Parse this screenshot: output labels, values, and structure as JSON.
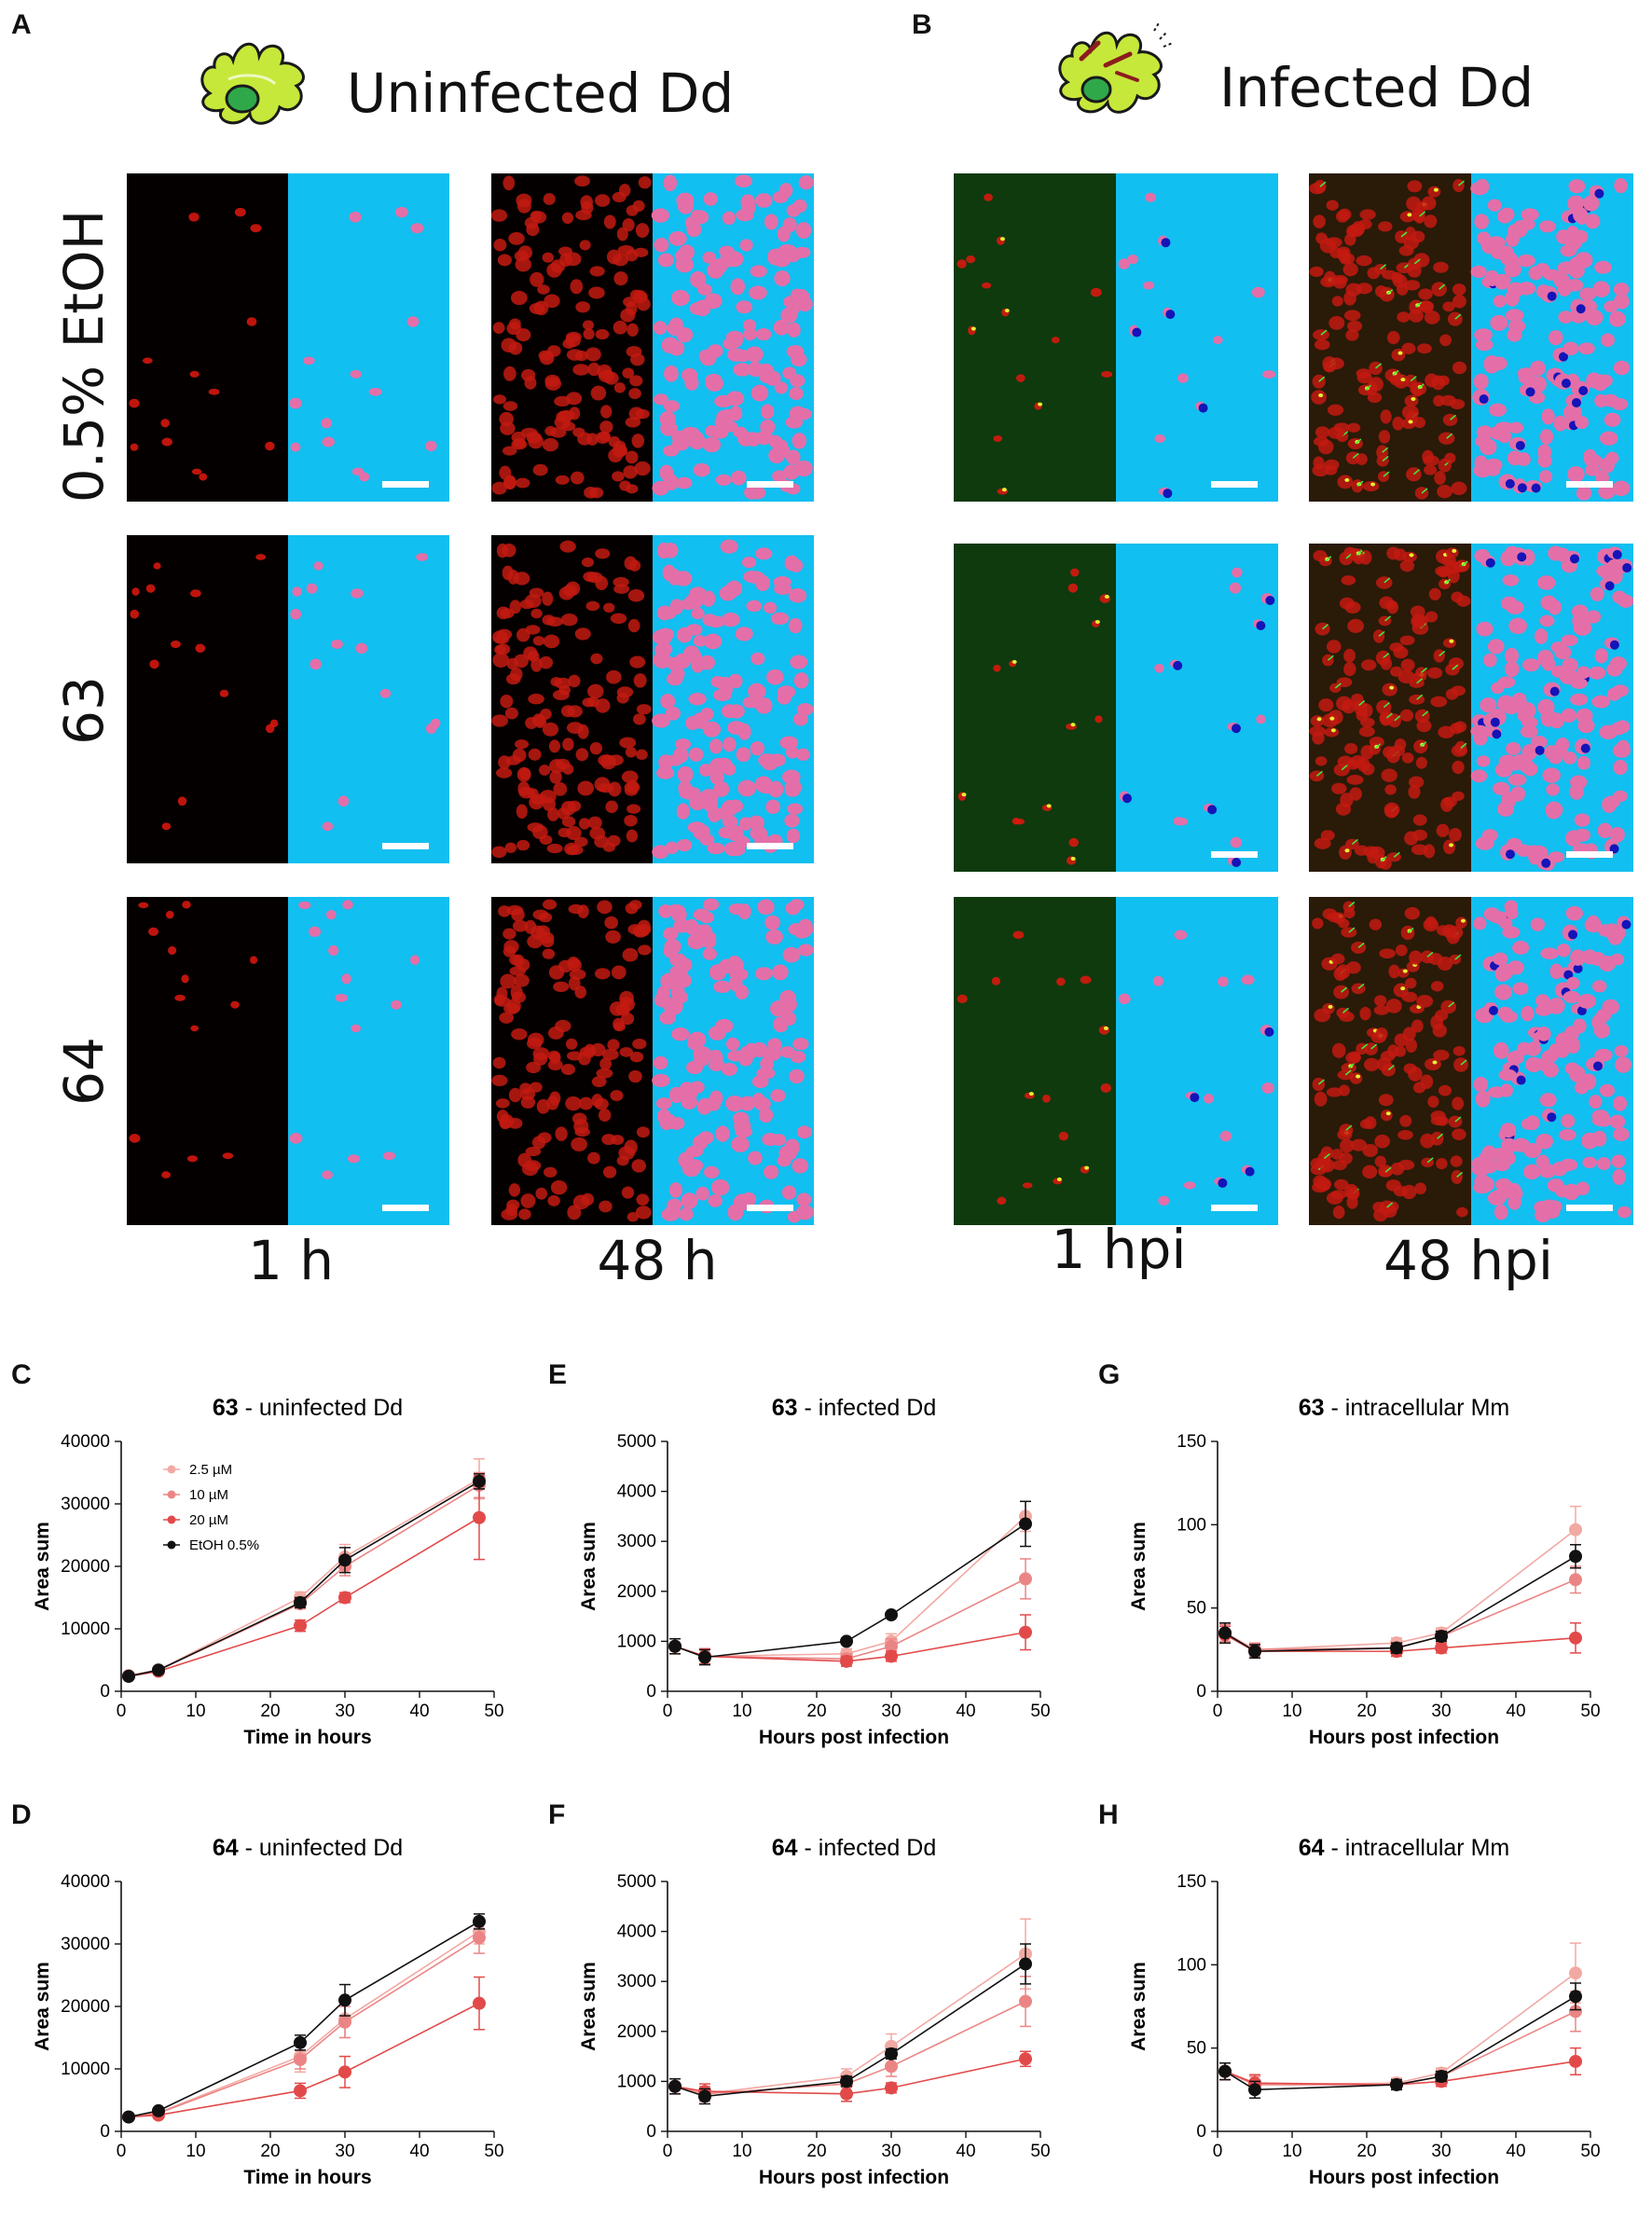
{
  "panels": {
    "A": "A",
    "B": "B",
    "C": "C",
    "D": "D",
    "E": "E",
    "F": "F",
    "G": "G",
    "H": "H"
  },
  "microscopy": {
    "uninfected_title": "Uninfected Dd",
    "infected_title": "Infected Dd",
    "rows": [
      "0.5% EtOH",
      "63",
      "64"
    ],
    "time_uninfected": [
      "1 h",
      "48 h"
    ],
    "time_infected": [
      "1 hpi",
      "48 hpi"
    ]
  },
  "colors": {
    "c25": "#f2a9a3",
    "c10": "#eb8585",
    "c20": "#e24a4a",
    "etoh": "#111111",
    "segmentation_bg": "#11bff0",
    "nuclei": "#e46fa8",
    "bacteria_mask": "#1414b8"
  },
  "chart_data": [
    {
      "id": "C",
      "type": "line",
      "title_bold": "63",
      "title_rest": " - uninfected Dd",
      "xlabel": "Time in hours",
      "ylabel": "Area sum",
      "xlim": [
        0,
        50
      ],
      "ylim": [
        0,
        40000
      ],
      "xticks": [
        0,
        10,
        20,
        30,
        40,
        50
      ],
      "yticks": [
        0,
        10000,
        20000,
        30000,
        40000
      ],
      "x": [
        1,
        5,
        24,
        30,
        48
      ],
      "legend": [
        "2.5 µM",
        "10 µM",
        "20 µM",
        "EtOH 0.5%"
      ],
      "series": [
        {
          "name": "2.5 µM",
          "color": "#f2a9a3",
          "values": [
            2500,
            3400,
            15000,
            21500,
            34000
          ],
          "err": [
            200,
            300,
            900,
            2000,
            3200
          ]
        },
        {
          "name": "10 µM",
          "color": "#eb8585",
          "values": [
            2500,
            3400,
            14000,
            20000,
            33000
          ],
          "err": [
            200,
            300,
            800,
            1500,
            2000
          ]
        },
        {
          "name": "20 µM",
          "color": "#e24a4a",
          "values": [
            2400,
            3200,
            10500,
            15000,
            27800
          ],
          "err": [
            200,
            300,
            900,
            800,
            6700
          ]
        },
        {
          "name": "EtOH 0.5%",
          "color": "#111111",
          "values": [
            2400,
            3400,
            14200,
            21000,
            33600
          ],
          "err": [
            200,
            300,
            800,
            2000,
            1200
          ]
        }
      ]
    },
    {
      "id": "D",
      "type": "line",
      "title_bold": "64",
      "title_rest": " - uninfected Dd",
      "xlabel": "Time in hours",
      "ylabel": "Area sum",
      "xlim": [
        0,
        50
      ],
      "ylim": [
        0,
        40000
      ],
      "xticks": [
        0,
        10,
        20,
        30,
        40,
        50
      ],
      "yticks": [
        0,
        10000,
        20000,
        30000,
        40000
      ],
      "x": [
        1,
        5,
        24,
        30,
        48
      ],
      "series": [
        {
          "name": "2.5 µM",
          "color": "#f2a9a3",
          "values": [
            2300,
            3000,
            12000,
            18000,
            32000
          ],
          "err": [
            200,
            300,
            2500,
            3000,
            2000
          ]
        },
        {
          "name": "10 µM",
          "color": "#eb8585",
          "values": [
            2300,
            2900,
            11500,
            17500,
            31000
          ],
          "err": [
            200,
            300,
            1500,
            2500,
            2500
          ]
        },
        {
          "name": "20 µM",
          "color": "#e24a4a",
          "values": [
            2300,
            2600,
            6500,
            9500,
            20500
          ],
          "err": [
            200,
            300,
            1200,
            2500,
            4200
          ]
        },
        {
          "name": "EtOH 0.5%",
          "color": "#111111",
          "values": [
            2300,
            3300,
            14200,
            21000,
            33600
          ],
          "err": [
            200,
            300,
            1200,
            2500,
            1200
          ]
        }
      ]
    },
    {
      "id": "E",
      "type": "line",
      "title_bold": "63",
      "title_rest": " - infected Dd",
      "xlabel": "Hours post infection",
      "ylabel": "Area sum",
      "xlim": [
        0,
        50
      ],
      "ylim": [
        0,
        5000
      ],
      "xticks": [
        0,
        10,
        20,
        30,
        40,
        50
      ],
      "yticks": [
        0,
        1000,
        2000,
        3000,
        4000,
        5000
      ],
      "x": [
        1,
        5,
        24,
        30,
        48
      ],
      "series": [
        {
          "name": "2.5 µM",
          "color": "#f2a9a3",
          "values": [
            900,
            700,
            750,
            1000,
            3500
          ],
          "err": [
            150,
            150,
            100,
            150,
            300
          ]
        },
        {
          "name": "10 µM",
          "color": "#eb8585",
          "values": [
            900,
            700,
            650,
            900,
            2250
          ],
          "err": [
            150,
            150,
            100,
            150,
            400
          ]
        },
        {
          "name": "20 µM",
          "color": "#e24a4a",
          "values": [
            900,
            700,
            600,
            700,
            1180
          ],
          "err": [
            150,
            150,
            100,
            100,
            350
          ]
        },
        {
          "name": "EtOH 0.5%",
          "color": "#111111",
          "values": [
            900,
            680,
            1000,
            1530,
            3350
          ],
          "err": [
            150,
            150,
            50,
            50,
            450
          ]
        }
      ]
    },
    {
      "id": "F",
      "type": "line",
      "title_bold": "64",
      "title_rest": " - infected Dd",
      "xlabel": "Hours post infection",
      "ylabel": "Area sum",
      "xlim": [
        0,
        50
      ],
      "ylim": [
        0,
        5000
      ],
      "xticks": [
        0,
        10,
        20,
        30,
        40,
        50
      ],
      "yticks": [
        0,
        1000,
        2000,
        3000,
        4000,
        5000
      ],
      "x": [
        1,
        5,
        24,
        30,
        48
      ],
      "series": [
        {
          "name": "2.5 µM",
          "color": "#f2a9a3",
          "values": [
            900,
            750,
            1100,
            1700,
            3550
          ],
          "err": [
            150,
            150,
            150,
            250,
            700
          ]
        },
        {
          "name": "10 µM",
          "color": "#eb8585",
          "values": [
            900,
            750,
            950,
            1300,
            2600
          ],
          "err": [
            150,
            150,
            150,
            200,
            500
          ]
        },
        {
          "name": "20 µM",
          "color": "#e24a4a",
          "values": [
            900,
            800,
            750,
            870,
            1450
          ],
          "err": [
            150,
            150,
            150,
            100,
            150
          ]
        },
        {
          "name": "EtOH 0.5%",
          "color": "#111111",
          "values": [
            900,
            700,
            1000,
            1550,
            3350
          ],
          "err": [
            150,
            150,
            100,
            100,
            400
          ]
        }
      ]
    },
    {
      "id": "G",
      "type": "line",
      "title_bold": "63",
      "title_rest": " - intracellular Mm",
      "xlabel": "Hours post infection",
      "ylabel": "Area sum",
      "xlim": [
        0,
        50
      ],
      "ylim": [
        0,
        150
      ],
      "xticks": [
        0,
        10,
        20,
        30,
        40,
        50
      ],
      "yticks": [
        0,
        50,
        100,
        150
      ],
      "x": [
        1,
        5,
        24,
        30,
        48
      ],
      "series": [
        {
          "name": "2.5 µM",
          "color": "#f2a9a3",
          "values": [
            35,
            25,
            29,
            35,
            97
          ],
          "err": [
            5,
            4,
            3,
            3,
            14
          ]
        },
        {
          "name": "10 µM",
          "color": "#eb8585",
          "values": [
            35,
            25,
            26,
            33,
            67
          ],
          "err": [
            5,
            4,
            3,
            3,
            8
          ]
        },
        {
          "name": "20 µM",
          "color": "#e24a4a",
          "values": [
            34,
            24,
            24,
            26,
            32
          ],
          "err": [
            5,
            4,
            3,
            3,
            9
          ]
        },
        {
          "name": "EtOH 0.5%",
          "color": "#111111",
          "values": [
            35,
            24,
            26,
            33,
            81
          ],
          "err": [
            6,
            4,
            3,
            3,
            7
          ]
        }
      ]
    },
    {
      "id": "H",
      "type": "line",
      "title_bold": "64",
      "title_rest": " - intracellular Mm",
      "xlabel": "Hours post infection",
      "ylabel": "Area sum",
      "xlim": [
        0,
        50
      ],
      "ylim": [
        0,
        150
      ],
      "xticks": [
        0,
        10,
        20,
        30,
        40,
        50
      ],
      "yticks": [
        0,
        50,
        100,
        150
      ],
      "x": [
        1,
        5,
        24,
        30,
        48
      ],
      "series": [
        {
          "name": "2.5 µM",
          "color": "#f2a9a3",
          "values": [
            36,
            28,
            29,
            35,
            95
          ],
          "err": [
            5,
            5,
            3,
            3,
            18
          ]
        },
        {
          "name": "10 µM",
          "color": "#eb8585",
          "values": [
            36,
            28,
            28,
            33,
            72
          ],
          "err": [
            5,
            5,
            3,
            3,
            12
          ]
        },
        {
          "name": "20 µM",
          "color": "#e24a4a",
          "values": [
            36,
            29,
            28,
            30,
            42
          ],
          "err": [
            5,
            5,
            3,
            3,
            8
          ]
        },
        {
          "name": "EtOH 0.5%",
          "color": "#111111",
          "values": [
            36,
            25,
            28,
            33,
            81
          ],
          "err": [
            5,
            5,
            3,
            3,
            8
          ]
        }
      ]
    }
  ]
}
